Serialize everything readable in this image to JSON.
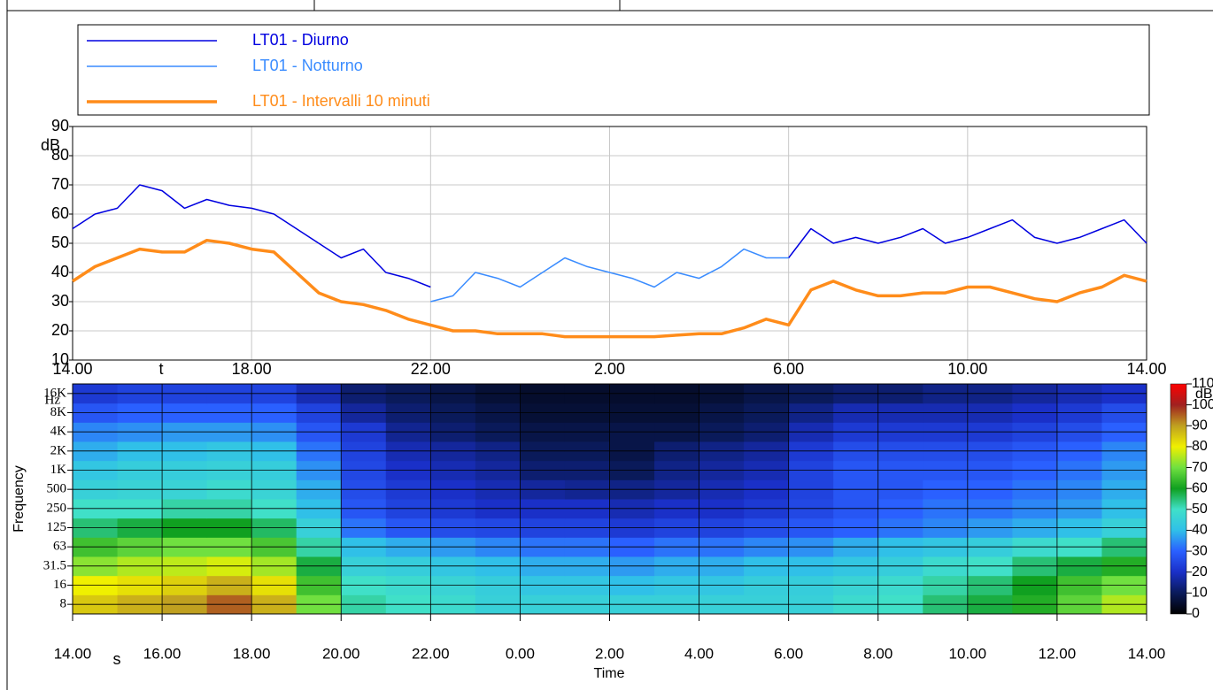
{
  "chart_data": [
    {
      "type": "line",
      "legend": true,
      "grid": true,
      "x": [
        14,
        14.5,
        15,
        15.5,
        16,
        16.5,
        17,
        17.5,
        18,
        18.5,
        19,
        19.5,
        20,
        20.5,
        21,
        21.5,
        22,
        22.5,
        23,
        23.5,
        24,
        24.5,
        25,
        25.5,
        26,
        26.5,
        27,
        27.5,
        28,
        28.5,
        29,
        29.5,
        30,
        30.5,
        31,
        31.5,
        32,
        32.5,
        33,
        33.5,
        34,
        34.5,
        35,
        35.5,
        36,
        36.5,
        37,
        37.5,
        38
      ],
      "series": [
        {
          "name": "LT01 - Diurno",
          "color": "#0000e0",
          "width": 1.5,
          "values": [
            55,
            60,
            62,
            70,
            68,
            62,
            65,
            63,
            62,
            60,
            55,
            50,
            45,
            48,
            40,
            38,
            35,
            null,
            null,
            null,
            null,
            null,
            null,
            null,
            null,
            null,
            null,
            null,
            null,
            null,
            null,
            null,
            45,
            55,
            50,
            52,
            50,
            52,
            55,
            50,
            52,
            55,
            58,
            52,
            50,
            52,
            55,
            58,
            50
          ]
        },
        {
          "name": "LT01 - Notturno",
          "color": "#3a8cff",
          "width": 1.5,
          "values": [
            null,
            null,
            null,
            null,
            null,
            null,
            null,
            null,
            null,
            null,
            null,
            null,
            null,
            null,
            null,
            null,
            30,
            32,
            40,
            38,
            35,
            40,
            45,
            42,
            40,
            38,
            35,
            40,
            38,
            42,
            48,
            45,
            45,
            null,
            null,
            null,
            null,
            null,
            null,
            null,
            null,
            null,
            null,
            null,
            null,
            null,
            null,
            null,
            null
          ]
        },
        {
          "name": "LT01 - Intervalli 10 minuti",
          "color": "#ff8c1a",
          "width": 3.5,
          "values": [
            37,
            42,
            45,
            48,
            47,
            47,
            51,
            50,
            48,
            47,
            40,
            33,
            30,
            29,
            27,
            24,
            22,
            20,
            20,
            19,
            19,
            19,
            18,
            18,
            18,
            18,
            18,
            18.5,
            19,
            19,
            21,
            24,
            22,
            34,
            37,
            34,
            32,
            32,
            33,
            33,
            35,
            35,
            33,
            31,
            30,
            33,
            35,
            39,
            37
          ]
        }
      ],
      "xlim": [
        14,
        38
      ],
      "xticks": [
        {
          "value": 14,
          "label": "14.00"
        },
        {
          "value": 18,
          "label": "18.00"
        },
        {
          "value": 22,
          "label": "22.00"
        },
        {
          "value": 26,
          "label": "2.00"
        },
        {
          "value": 30,
          "label": "6.00"
        },
        {
          "value": 34,
          "label": "10.00"
        },
        {
          "value": 38,
          "label": "14.00"
        }
      ],
      "x_label": "t",
      "ylim": [
        10,
        90
      ],
      "yticks": [
        10,
        20,
        30,
        40,
        50,
        60,
        70,
        80,
        90
      ],
      "y_unit": "dB"
    },
    {
      "type": "heatmap",
      "grid": true,
      "x": [
        14,
        15,
        16,
        17,
        18,
        19,
        20,
        21,
        22,
        23,
        24,
        25,
        26,
        27,
        28,
        29,
        30,
        31,
        32,
        33,
        34,
        35,
        36,
        37
      ],
      "categories": [
        "8",
        "16",
        "31.5",
        "63",
        "125",
        "250",
        "500",
        "1K",
        "2K",
        "4K",
        "8K",
        "16K"
      ],
      "z": [
        [
          85,
          88,
          90,
          95,
          88,
          70,
          52,
          50,
          48,
          45,
          45,
          45,
          45,
          45,
          45,
          45,
          45,
          48,
          50,
          55,
          58,
          62,
          68,
          75
        ],
        [
          80,
          82,
          84,
          88,
          82,
          65,
          50,
          48,
          46,
          44,
          42,
          42,
          40,
          42,
          42,
          44,
          44,
          46,
          48,
          52,
          55,
          60,
          65,
          70
        ],
        [
          72,
          75,
          76,
          78,
          74,
          58,
          45,
          44,
          42,
          40,
          38,
          38,
          36,
          38,
          38,
          40,
          40,
          42,
          44,
          48,
          50,
          55,
          58,
          62
        ],
        [
          65,
          68,
          70,
          70,
          66,
          52,
          40,
          38,
          36,
          34,
          32,
          32,
          30,
          32,
          32,
          34,
          35,
          38,
          40,
          42,
          44,
          48,
          50,
          55
        ],
        [
          55,
          58,
          60,
          60,
          56,
          45,
          32,
          28,
          26,
          25,
          24,
          24,
          22,
          24,
          24,
          26,
          28,
          30,
          32,
          34,
          36,
          38,
          40,
          45
        ],
        [
          50,
          50,
          52,
          52,
          50,
          40,
          28,
          24,
          22,
          20,
          20,
          20,
          18,
          20,
          20,
          22,
          25,
          28,
          30,
          32,
          32,
          34,
          36,
          40
        ],
        [
          45,
          46,
          46,
          48,
          46,
          38,
          26,
          22,
          20,
          18,
          16,
          15,
          14,
          16,
          18,
          20,
          24,
          28,
          28,
          30,
          30,
          32,
          34,
          38
        ],
        [
          42,
          44,
          44,
          45,
          44,
          35,
          25,
          20,
          18,
          16,
          12,
          12,
          10,
          14,
          16,
          18,
          24,
          28,
          28,
          28,
          28,
          30,
          32,
          36
        ],
        [
          38,
          40,
          40,
          42,
          40,
          32,
          24,
          18,
          16,
          14,
          10,
          10,
          8,
          12,
          14,
          16,
          22,
          26,
          26,
          26,
          26,
          28,
          30,
          34
        ],
        [
          34,
          35,
          36,
          36,
          35,
          28,
          22,
          15,
          12,
          10,
          8,
          8,
          8,
          8,
          10,
          12,
          18,
          22,
          22,
          22,
          22,
          24,
          26,
          30
        ],
        [
          28,
          30,
          30,
          30,
          30,
          24,
          16,
          12,
          10,
          8,
          6,
          6,
          6,
          6,
          8,
          10,
          14,
          18,
          18,
          18,
          18,
          20,
          22,
          26
        ],
        [
          22,
          24,
          24,
          24,
          24,
          18,
          12,
          10,
          8,
          6,
          5,
          5,
          5,
          5,
          6,
          8,
          10,
          12,
          12,
          14,
          14,
          16,
          18,
          20
        ]
      ],
      "xlim": [
        14,
        38
      ],
      "xticks": [
        {
          "value": 14,
          "label": "14.00"
        },
        {
          "value": 16,
          "label": "16.00"
        },
        {
          "value": 18,
          "label": "18.00"
        },
        {
          "value": 20,
          "label": "20.00"
        },
        {
          "value": 22,
          "label": "22.00"
        },
        {
          "value": 24,
          "label": "0.00"
        },
        {
          "value": 26,
          "label": "2.00"
        },
        {
          "value": 28,
          "label": "4.00"
        },
        {
          "value": 30,
          "label": "6.00"
        },
        {
          "value": 32,
          "label": "8.00"
        },
        {
          "value": 34,
          "label": "10.00"
        },
        {
          "value": 36,
          "label": "12.00"
        },
        {
          "value": 38,
          "label": "14.00"
        }
      ],
      "x_label": "s",
      "x_title": "Time",
      "y_title": "Frequency",
      "y_unit": "Hz",
      "zlim": [
        0,
        110
      ],
      "zticks": [
        0,
        10,
        20,
        30,
        40,
        50,
        60,
        70,
        80,
        90,
        100,
        110
      ],
      "z_unit": "dB",
      "colorscale": [
        "#000000",
        "#0a1a5a",
        "#1a30c8",
        "#2a60ff",
        "#30c0e8",
        "#40e0c8",
        "#10a020",
        "#70e040",
        "#f0f000",
        "#c0a020",
        "#a02020",
        "#ff0000"
      ]
    }
  ]
}
